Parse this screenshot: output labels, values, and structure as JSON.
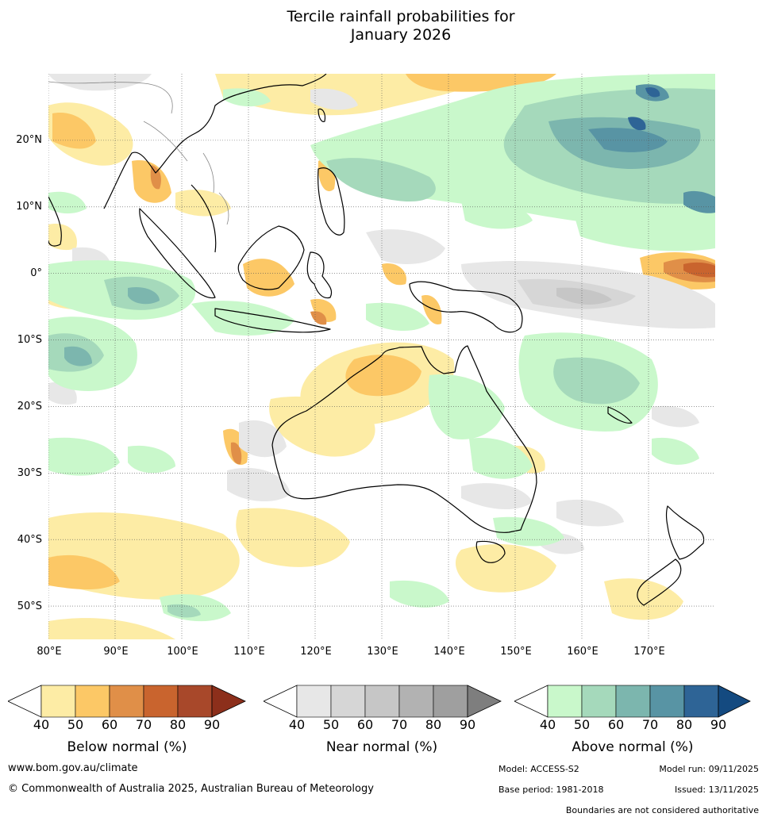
{
  "title_line1": "Tercile rainfall probabilities for",
  "title_line2": "January 2026",
  "map": {
    "lat_labels": [
      "20°N",
      "10°N",
      "0°",
      "10°S",
      "20°S",
      "30°S",
      "40°S",
      "50°S"
    ],
    "lat_values": [
      20,
      10,
      0,
      -10,
      -20,
      -30,
      -40,
      -50
    ],
    "lon_labels": [
      "80°E",
      "90°E",
      "100°E",
      "110°E",
      "120°E",
      "130°E",
      "140°E",
      "150°E",
      "160°E",
      "170°E"
    ],
    "lon_values": [
      80,
      90,
      100,
      110,
      120,
      130,
      140,
      150,
      160,
      170
    ],
    "lat_range": [
      -55,
      30
    ],
    "lon_range": [
      80,
      180
    ]
  },
  "colorbars": [
    {
      "label": "Below normal (%)",
      "ticks": [
        "40",
        "50",
        "60",
        "70",
        "80",
        "90"
      ],
      "colors": [
        "#ffffff",
        "#fdeca5",
        "#fcc866",
        "#e08f48",
        "#c9642e",
        "#a8482a",
        "#8c2f1b"
      ]
    },
    {
      "label": "Near normal (%)",
      "ticks": [
        "40",
        "50",
        "60",
        "70",
        "80",
        "90"
      ],
      "colors": [
        "#ffffff",
        "#e7e7e7",
        "#d6d6d6",
        "#c6c6c6",
        "#b2b2b2",
        "#9f9f9f",
        "#7e7e7e"
      ]
    },
    {
      "label": "Above normal (%)",
      "ticks": [
        "40",
        "50",
        "60",
        "70",
        "80",
        "90"
      ],
      "colors": [
        "#ffffff",
        "#c9f8cb",
        "#a5d9bb",
        "#7cb6ae",
        "#5894a4",
        "#2e6496",
        "#144a80"
      ]
    }
  ],
  "footer": {
    "website": "www.bom.gov.au/climate",
    "copyright": "© Commonwealth of Australia 2025, Australian Bureau of Meteorology",
    "model": "Model: ACCESS-S2",
    "model_run": "Model run: 09/11/2025",
    "base_period": "Base period: 1981-2018",
    "issued": "Issued: 13/11/2025",
    "disclaimer": "Boundaries are not considered authoritative"
  }
}
